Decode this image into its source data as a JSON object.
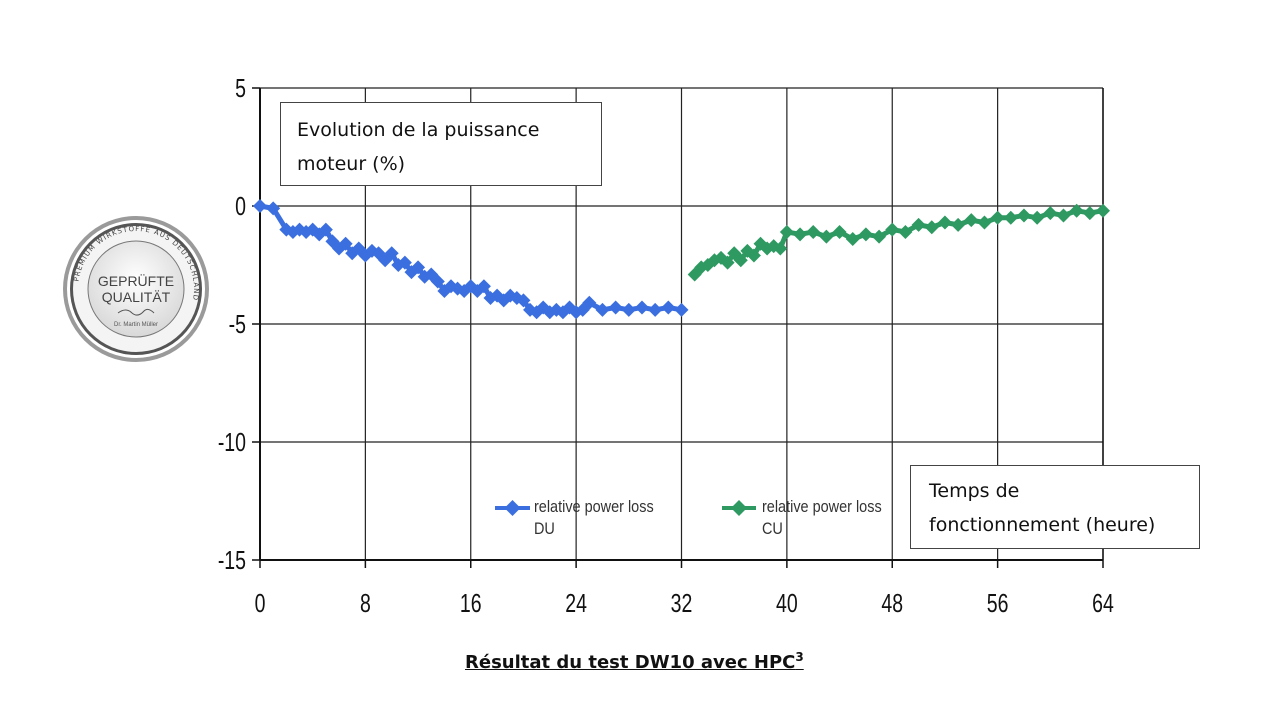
{
  "chart_data": {
    "type": "line",
    "title": "",
    "ylabel": "Evolution de la puissance moteur (%)",
    "ylabel_lines": [
      "Evolution de la puissance",
      "moteur (%)"
    ],
    "xlabel": "Temps de fonctionnement (heure)",
    "xlabel_lines": [
      "Temps de",
      "fonctionnement (heure)"
    ],
    "xlim": [
      0,
      64
    ],
    "ylim": [
      -15,
      5
    ],
    "x_ticks": [
      0,
      8,
      16,
      24,
      32,
      40,
      48,
      56,
      64
    ],
    "y_ticks": [
      5,
      0,
      -5,
      -10,
      -15
    ],
    "grid": true,
    "legend_position": "bottom-center",
    "series": [
      {
        "name": "relative power loss DU",
        "legend_line1": "relative power loss",
        "legend_line2": "DU",
        "color": "#3b6fe0",
        "x": [
          0,
          1,
          2,
          2.5,
          3,
          3.5,
          4,
          4.5,
          5,
          5.5,
          6,
          6.5,
          7,
          7.5,
          8,
          8.5,
          9,
          9.5,
          10,
          10.5,
          11,
          11.5,
          12,
          12.5,
          13,
          13.5,
          14,
          14.5,
          15,
          15.5,
          16,
          16.5,
          17,
          17.5,
          18,
          18.5,
          19,
          19.5,
          20,
          20.5,
          21,
          21.5,
          22,
          22.5,
          23,
          23.5,
          24,
          24.5,
          25,
          26,
          27,
          28,
          29,
          30,
          31,
          32
        ],
        "y": [
          0,
          -0.1,
          -1,
          -1.1,
          -1,
          -1.1,
          -1,
          -1.2,
          -1,
          -1.5,
          -1.8,
          -1.6,
          -2,
          -1.8,
          -2.1,
          -1.9,
          -2,
          -2.3,
          -2,
          -2.5,
          -2.4,
          -2.8,
          -2.6,
          -3,
          -2.9,
          -3.2,
          -3.6,
          -3.4,
          -3.5,
          -3.6,
          -3.4,
          -3.6,
          -3.4,
          -3.9,
          -3.8,
          -4.0,
          -3.8,
          -3.9,
          -4.0,
          -4.4,
          -4.5,
          -4.3,
          -4.5,
          -4.4,
          -4.5,
          -4.3,
          -4.5,
          -4.4,
          -4.1,
          -4.4,
          -4.3,
          -4.4,
          -4.3,
          -4.4,
          -4.3,
          -4.4
        ]
      },
      {
        "name": "relative power loss CU",
        "legend_line1": "relative power loss",
        "legend_line2": "CU",
        "color": "#2e9a62",
        "x": [
          33,
          33.5,
          34,
          34.5,
          35,
          35.5,
          36,
          36.5,
          37,
          37.5,
          38,
          38.5,
          39,
          39.5,
          40,
          41,
          42,
          43,
          44,
          45,
          46,
          47,
          48,
          49,
          50,
          51,
          52,
          53,
          54,
          55,
          56,
          57,
          58,
          59,
          60,
          61,
          62,
          63,
          64
        ],
        "y": [
          -2.9,
          -2.6,
          -2.5,
          -2.3,
          -2.2,
          -2.4,
          -2.0,
          -2.3,
          -1.9,
          -2.1,
          -1.6,
          -1.8,
          -1.7,
          -1.8,
          -1.1,
          -1.2,
          -1.1,
          -1.3,
          -1.1,
          -1.4,
          -1.2,
          -1.3,
          -1.0,
          -1.1,
          -0.8,
          -0.9,
          -0.7,
          -0.8,
          -0.6,
          -0.7,
          -0.5,
          -0.5,
          -0.4,
          -0.5,
          -0.3,
          -0.4,
          -0.2,
          -0.3,
          -0.2
        ]
      }
    ],
    "caption": "Résultat du test DW10 avec HPC",
    "caption_sup": "3"
  },
  "seal": {
    "line1": "GEPRÜFTE",
    "line2": "QUALITÄT",
    "ring_text": "PREMIUM WIRKSTOFFE AUS DEUTSCHLAND",
    "signature": "Dr. Martin Müller"
  }
}
